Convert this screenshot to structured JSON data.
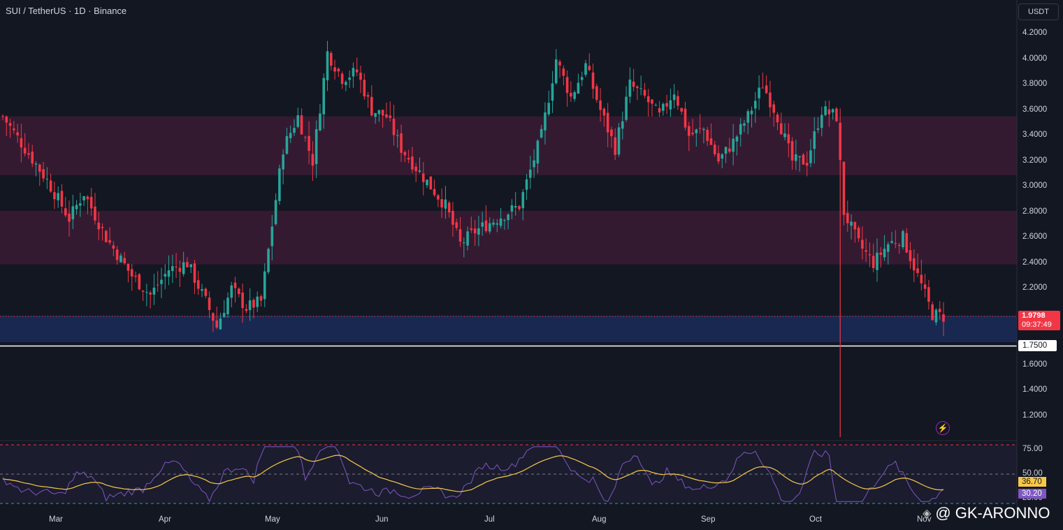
{
  "header": {
    "title": "SUI / TetherUS · 1D · Binance",
    "currency": "USDT"
  },
  "price_axis": [
    "4.2000",
    "4.0000",
    "3.8000",
    "3.6000",
    "3.4000",
    "3.2000",
    "3.0000",
    "2.8000",
    "2.6000",
    "2.4000",
    "2.2000",
    "1.6000",
    "1.4000",
    "1.2000"
  ],
  "time_axis": [
    "Mar",
    "Apr",
    "May",
    "Jun",
    "Jul",
    "Aug",
    "Sep",
    "Oct",
    "Nov"
  ],
  "last_price": {
    "price": "1.9798",
    "countdown": "09:37:49"
  },
  "level_line": "1.7500",
  "rsi_axis": [
    "75.00",
    "50.00",
    "25.00"
  ],
  "rsi_values": {
    "ma": "36.70",
    "rsi": "30.20"
  },
  "watermark": "@ GK-ARONNO",
  "colors": {
    "up": "#26a69a",
    "down": "#f23645",
    "bg": "#131722",
    "zone": "#3b1b34",
    "support_zone": "#1b2a55",
    "rsi_line": "#7e57c2",
    "rsi_ma": "#f7c948"
  },
  "chart_data": {
    "type": "candlestick",
    "symbol": "SUI / TetherUS",
    "interval": "1D",
    "ylim": [
      1.1,
      4.35
    ],
    "zones": [
      {
        "from": 3.09,
        "to": 3.55
      },
      {
        "from": 2.39,
        "to": 2.81
      },
      {
        "from": 1.78,
        "to": 1.99
      }
    ],
    "horizontal_line": 1.75,
    "close_path": [
      [
        0,
        3.55
      ],
      [
        6,
        3.3
      ],
      [
        12,
        3.05
      ],
      [
        18,
        2.75
      ],
      [
        22,
        2.95
      ],
      [
        28,
        2.6
      ],
      [
        35,
        2.3
      ],
      [
        40,
        2.15
      ],
      [
        45,
        2.35
      ],
      [
        50,
        2.4
      ],
      [
        55,
        2.1
      ],
      [
        58,
        1.9
      ],
      [
        62,
        2.2
      ],
      [
        66,
        2.05
      ],
      [
        70,
        2.1
      ],
      [
        76,
        3.3
      ],
      [
        80,
        3.55
      ],
      [
        84,
        3.2
      ],
      [
        88,
        4.05
      ],
      [
        92,
        3.85
      ],
      [
        96,
        3.9
      ],
      [
        100,
        3.6
      ],
      [
        104,
        3.55
      ],
      [
        108,
        3.3
      ],
      [
        112,
        3.15
      ],
      [
        116,
        3.0
      ],
      [
        120,
        2.85
      ],
      [
        124,
        2.55
      ],
      [
        128,
        2.65
      ],
      [
        134,
        2.75
      ],
      [
        140,
        2.85
      ],
      [
        146,
        3.4
      ],
      [
        150,
        4.0
      ],
      [
        154,
        3.7
      ],
      [
        158,
        3.95
      ],
      [
        162,
        3.6
      ],
      [
        166,
        3.3
      ],
      [
        170,
        3.8
      ],
      [
        174,
        3.7
      ],
      [
        178,
        3.55
      ],
      [
        182,
        3.75
      ],
      [
        186,
        3.4
      ],
      [
        190,
        3.45
      ],
      [
        194,
        3.2
      ],
      [
        198,
        3.35
      ],
      [
        202,
        3.55
      ],
      [
        206,
        3.8
      ],
      [
        210,
        3.55
      ],
      [
        214,
        3.2
      ],
      [
        218,
        3.2
      ],
      [
        222,
        3.6
      ],
      [
        226,
        3.55
      ],
      [
        228,
        2.8
      ],
      [
        232,
        2.55
      ],
      [
        236,
        2.4
      ],
      [
        240,
        2.55
      ],
      [
        244,
        2.6
      ],
      [
        248,
        2.3
      ],
      [
        252,
        2.0
      ],
      [
        255,
        1.98
      ]
    ],
    "rsi": {
      "levels": [
        80,
        50,
        20
      ],
      "last_rsi": 30.2,
      "last_ma": 36.7
    }
  }
}
